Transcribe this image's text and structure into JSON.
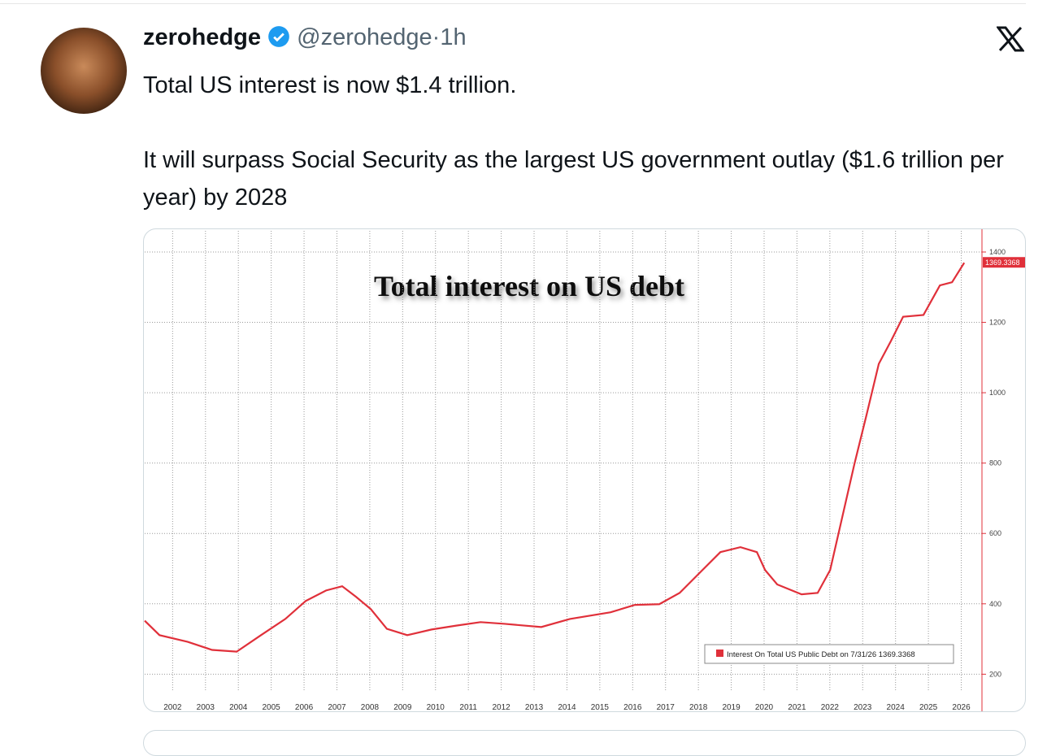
{
  "tweet": {
    "name": "zerohedge",
    "handle": "@zerohedge",
    "separator": "·",
    "time": "1h",
    "text": [
      "Total US interest is now $1.4 trillion.",
      "It will surpass Social Security as the largest US government outlay ($1.6 trillion per year) by 2028"
    ]
  },
  "chart_data": {
    "type": "line",
    "title": "Total interest on US debt",
    "x": [
      2001.65,
      2002.1,
      2002.96,
      2003.7,
      2004.45,
      2005.19,
      2005.93,
      2006.55,
      2007.17,
      2007.66,
      2008.08,
      2008.53,
      2009.02,
      2009.64,
      2010.38,
      2011.13,
      2011.87,
      2012.61,
      2013.72,
      2014.59,
      2015.83,
      2016.57,
      2017.31,
      2017.93,
      2018.55,
      2019.17,
      2019.78,
      2020.28,
      2020.53,
      2020.9,
      2021.64,
      2022.13,
      2022.51,
      2022.88,
      2023.25,
      2023.62,
      2023.99,
      2024.36,
      2024.73,
      2025.35,
      2025.85,
      2026.22,
      2026.59
    ],
    "series": [
      {
        "name": "Interest On Total US Public Debt on 7/31/26 1369.3368",
        "color": "#e0303a",
        "axis": "y2",
        "values": [
          352,
          311,
          292,
          269,
          264,
          311,
          357,
          408,
          438,
          450,
          420,
          385,
          329,
          311,
          327,
          338,
          348,
          343,
          334,
          357,
          376,
          397,
          399,
          431,
          489,
          547,
          561,
          547,
          496,
          455,
          427,
          431,
          496,
          647,
          798,
          938,
          1082,
          1147,
          1216,
          1221,
          1305,
          1314,
          1369.3368
        ]
      }
    ],
    "xlim": [
      2001.65,
      2027.13
    ],
    "xticks": [
      {
        "value": 2002.5,
        "label": "2002"
      },
      {
        "value": 2003.5,
        "label": "2003"
      },
      {
        "value": 2004.5,
        "label": "2004"
      },
      {
        "value": 2005.5,
        "label": "2005"
      },
      {
        "value": 2006.5,
        "label": "2006"
      },
      {
        "value": 2007.5,
        "label": "2007"
      },
      {
        "value": 2008.5,
        "label": "2008"
      },
      {
        "value": 2009.5,
        "label": "2009"
      },
      {
        "value": 2010.5,
        "label": "2010"
      },
      {
        "value": 2011.5,
        "label": "2011"
      },
      {
        "value": 2012.5,
        "label": "2012"
      },
      {
        "value": 2013.5,
        "label": "2013"
      },
      {
        "value": 2014.5,
        "label": "2014"
      },
      {
        "value": 2015.5,
        "label": "2015"
      },
      {
        "value": 2016.5,
        "label": "2016"
      },
      {
        "value": 2017.5,
        "label": "2017"
      },
      {
        "value": 2018.5,
        "label": "2018"
      },
      {
        "value": 2019.5,
        "label": "2019"
      },
      {
        "value": 2020.5,
        "label": "2020"
      },
      {
        "value": 2021.5,
        "label": "2021"
      },
      {
        "value": 2022.5,
        "label": "2022"
      },
      {
        "value": 2023.5,
        "label": "2023"
      },
      {
        "value": 2024.5,
        "label": "2024"
      },
      {
        "value": 2025.5,
        "label": "2025"
      },
      {
        "value": 2026.5,
        "label": "2026"
      }
    ],
    "y2lim": [
      150,
      1460
    ],
    "y2ticks": [
      200,
      400,
      600,
      800,
      1000,
      1200,
      1400
    ],
    "grid": true
  }
}
